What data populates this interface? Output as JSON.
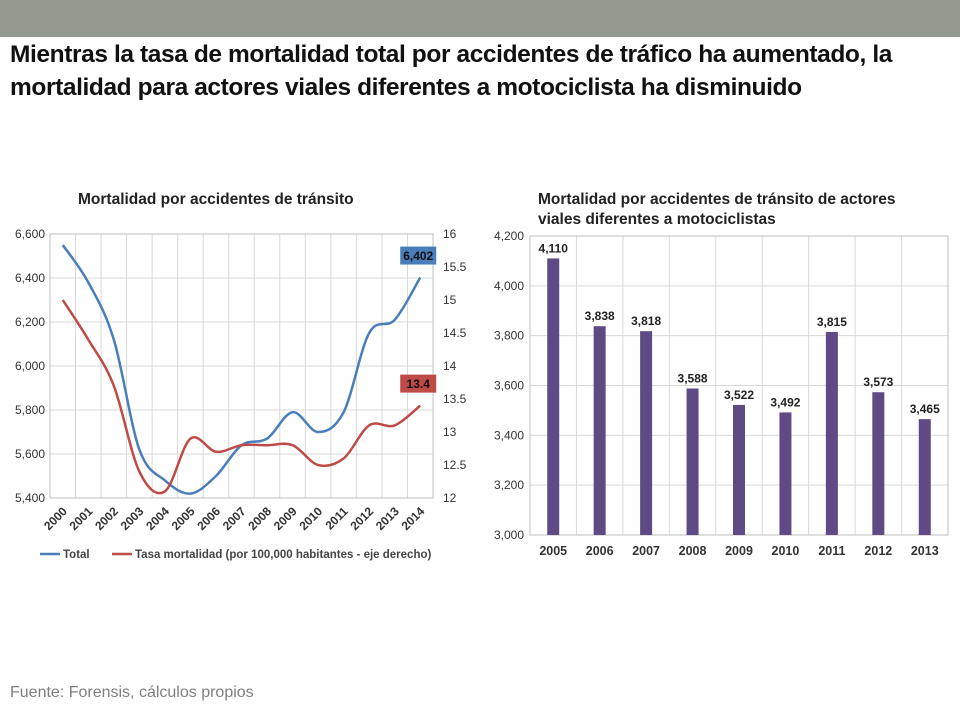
{
  "title": "Mientras la tasa de mortalidad total por accidentes de tráfico ha aumentado, la mortalidad para actores viales diferentes a motociclista ha disminuido",
  "footer": "Fuente: Forensis, cálculos propios",
  "colors": {
    "topbar": "#939b91",
    "total": "#4a7ebb",
    "tasa": "#be4b48",
    "bars": "#5e4b86"
  },
  "chart_data": [
    {
      "type": "line",
      "title": "Mortalidad por accidentes de tránsito",
      "x": [
        "2000",
        "2001",
        "2002",
        "2003",
        "2004",
        "2005",
        "2006",
        "2007",
        "2008",
        "2009",
        "2010",
        "2011",
        "2012",
        "2013",
        "2014"
      ],
      "ylim": [
        5400,
        6600
      ],
      "yticks": [
        "5,400",
        "5,600",
        "5,800",
        "6,000",
        "6,200",
        "6,400",
        "6,600"
      ],
      "y2lim": [
        12,
        16
      ],
      "y2ticks": [
        "12",
        "12.5",
        "13",
        "13.5",
        "14",
        "14.5",
        "15",
        "15.5",
        "16"
      ],
      "grid": true,
      "legend": "bottom",
      "series": [
        {
          "name": "Total",
          "axis": "left",
          "values": [
            6550,
            6380,
            6120,
            5620,
            5480,
            5420,
            5500,
            5640,
            5670,
            5790,
            5700,
            5790,
            6150,
            6210,
            6402
          ],
          "end_label": "6,402"
        },
        {
          "name": "Tasa mortalidad (por 100,000 habitantes - eje derecho)",
          "axis": "right",
          "values": [
            15.0,
            14.4,
            13.7,
            12.4,
            12.1,
            12.9,
            12.7,
            12.8,
            12.8,
            12.8,
            12.5,
            12.6,
            13.1,
            13.1,
            13.4
          ],
          "end_label": "13.4"
        }
      ]
    },
    {
      "type": "bar",
      "title": "Mortalidad por accidentes de tránsito de actores viales diferentes a motociclistas",
      "categories": [
        "2005",
        "2006",
        "2007",
        "2008",
        "2009",
        "2010",
        "2011",
        "2012",
        "2013"
      ],
      "values": [
        4110,
        3838,
        3818,
        3588,
        3522,
        3492,
        3815,
        3573,
        3465
      ],
      "labels": [
        "4,110",
        "3,838",
        "3,818",
        "3,588",
        "3,522",
        "3,492",
        "3,815",
        "3,573",
        "3,465"
      ],
      "ylim": [
        3000,
        4200
      ],
      "yticks": [
        "3,000",
        "3,200",
        "3,400",
        "3,600",
        "3,800",
        "4,000",
        "4,200"
      ],
      "grid": true
    }
  ]
}
